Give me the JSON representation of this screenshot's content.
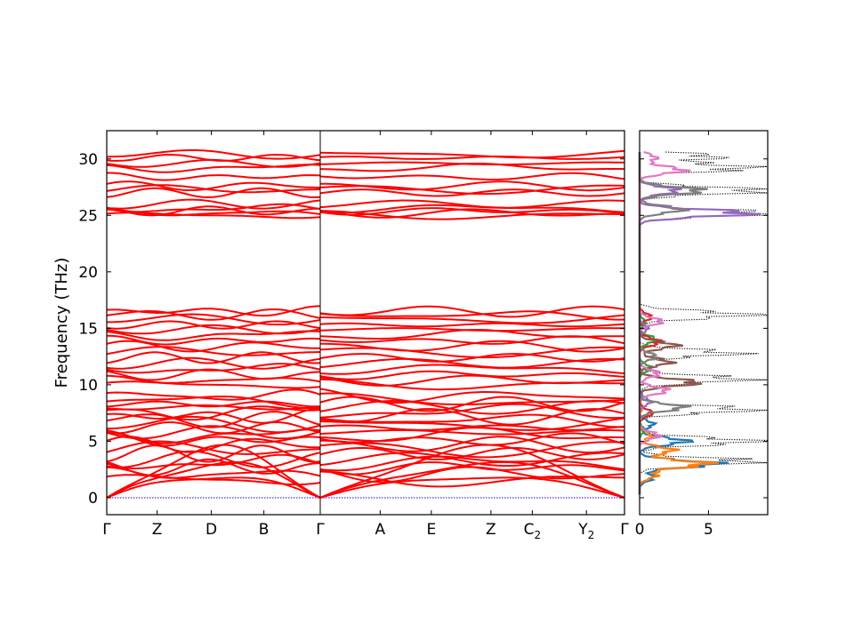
{
  "chart_data": [
    {
      "type": "line",
      "title": "",
      "ylabel": "Frequency (THz)",
      "xlabel": "",
      "ylim": [
        -1.5,
        32.5
      ],
      "yticks": [
        0,
        5,
        10,
        15,
        20,
        25,
        30
      ],
      "grid": false,
      "line_color": "#ff0000",
      "zero_line_color": "#0000ff",
      "segments": [
        {
          "from": "Γ",
          "to": "Γ",
          "labels": [
            "Γ",
            "Z",
            "D",
            "B",
            "Γ"
          ],
          "fractions": [
            0,
            0.236,
            0.49,
            0.736,
            1
          ]
        },
        {
          "from": "Γ",
          "to": "Γ",
          "labels": [
            "Γ",
            "A",
            "E",
            "Z",
            "C",
            "Y",
            "Γ"
          ],
          "label_subscripts": [
            "",
            "",
            "",
            "",
            "2",
            "2",
            ""
          ],
          "fractions": [
            0,
            0.197,
            0.365,
            0.561,
            0.697,
            0.875,
            1
          ]
        }
      ],
      "bands": {
        "acoustic_gamma_slopes": [
          3.0,
          5.0,
          7.0
        ],
        "acoustic_max": [
          2.4,
          3.6,
          4.8
        ],
        "low_group": [
          1.6,
          2.1,
          2.7,
          3.1,
          3.4,
          3.9,
          4.3,
          4.7,
          5.1,
          5.5,
          5.8,
          6.2,
          6.5,
          6.9,
          7.2,
          7.6,
          8.0,
          8.3,
          8.6,
          9.0
        ],
        "mid_group": [
          10.0,
          10.4,
          10.9,
          11.4,
          11.9,
          12.4,
          12.9,
          13.4,
          13.9,
          14.4,
          14.9,
          15.3,
          15.8,
          16.2,
          16.5
        ],
        "high_group": [
          25.0,
          25.2,
          25.4,
          25.6,
          26.0,
          27.0,
          27.3,
          27.6,
          28.4,
          29.2,
          29.6,
          30.1,
          30.4
        ]
      }
    },
    {
      "type": "line",
      "title": "",
      "xlim": [
        0,
        9.3
      ],
      "xticks": [
        0,
        5
      ],
      "ylim": [
        -1.5,
        32.5
      ],
      "series": [
        {
          "color": "#000000",
          "style": "dotted",
          "peaks": [
            [
              0.3,
              0
            ],
            [
              3.2,
              8.5
            ],
            [
              5.0,
              8.8
            ],
            [
              7.8,
              8.2
            ],
            [
              10.5,
              7.5
            ],
            [
              12.8,
              6.8
            ],
            [
              16.2,
              8.0
            ],
            [
              25.2,
              9.2
            ],
            [
              27.2,
              9.3
            ],
            [
              29.2,
              8.0
            ],
            [
              30.2,
              5.5
            ]
          ]
        },
        {
          "color": "#1f77b4",
          "style": "solid",
          "peaks": [
            [
              0.5,
              0
            ],
            [
              1.8,
              1.0
            ],
            [
              3.0,
              5.4
            ],
            [
              5.0,
              3.4
            ],
            [
              6.5,
              1.0
            ],
            [
              9.0,
              0.2
            ]
          ]
        },
        {
          "color": "#ff7f0e",
          "style": "solid",
          "peaks": [
            [
              0.5,
              0
            ],
            [
              2.0,
              1.2
            ],
            [
              3.0,
              4.8
            ],
            [
              4.2,
              2.4
            ],
            [
              5.5,
              0.8
            ],
            [
              8.0,
              0.2
            ]
          ]
        },
        {
          "color": "#2ca02c",
          "style": "solid",
          "peaks": [
            [
              6.0,
              0.3
            ],
            [
              11.5,
              0.8
            ],
            [
              14.0,
              1.2
            ],
            [
              15.5,
              0.4
            ]
          ]
        },
        {
          "color": "#d62728",
          "style": "solid",
          "peaks": [
            [
              7.5,
              0.9
            ],
            [
              13.8,
              1.5
            ],
            [
              16.0,
              0.8
            ]
          ]
        },
        {
          "color": "#9467bd",
          "style": "solid",
          "peaks": [
            [
              8.5,
              0.8
            ],
            [
              15.0,
              0.6
            ],
            [
              25.2,
              8.0
            ],
            [
              27.2,
              2.8
            ]
          ]
        },
        {
          "color": "#8c564b",
          "style": "solid",
          "peaks": [
            [
              10.2,
              4.2
            ],
            [
              12.0,
              2.2
            ],
            [
              13.5,
              2.6
            ]
          ]
        },
        {
          "color": "#e377c2",
          "style": "solid",
          "peaks": [
            [
              5.5,
              1.4
            ],
            [
              9.5,
              2.0
            ],
            [
              11.0,
              1.4
            ],
            [
              15.6,
              1.6
            ],
            [
              29.0,
              3.2
            ],
            [
              30.1,
              1.2
            ]
          ]
        },
        {
          "color": "#7f7f7f",
          "style": "solid",
          "peaks": [
            [
              8.0,
              3.2
            ],
            [
              12.5,
              1.2
            ],
            [
              27.2,
              4.5
            ],
            [
              25.5,
              3.0
            ]
          ]
        }
      ]
    }
  ]
}
